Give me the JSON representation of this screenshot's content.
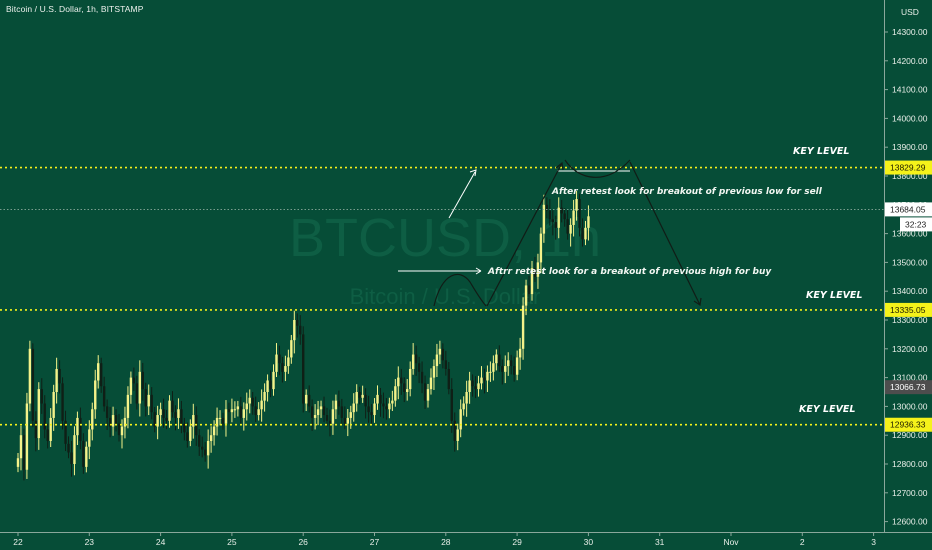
{
  "header": {
    "title": "Bitcoin / U.S. Dollar, 1h, BITSTAMP"
  },
  "watermark": {
    "symbol": "BTCUSD, 1h",
    "name": "Bitcoin / U.S. Dollar"
  },
  "colors": {
    "background": "#064d37",
    "up_candle": "#f4f28a",
    "down_candle": "#0f1f16",
    "key_level": "#f5f21a",
    "drawing": "#111c16",
    "white_line": "#ffffff"
  },
  "chart_data": {
    "type": "candlestick",
    "symbol": "BTCUSD",
    "timeframe": "1h",
    "exchange": "BITSTAMP",
    "y_axis": {
      "unit": "USD",
      "ylim": [
        12560,
        14440
      ],
      "tick_labels": [
        "14400.00",
        "14300.00",
        "14200.00",
        "14100.00",
        "14000.00",
        "13900.00",
        "13800.00",
        "13700.00",
        "13600.00",
        "13500.00",
        "13400.00",
        "13300.00",
        "13200.00",
        "13100.00",
        "13000.00",
        "12900.00",
        "12800.00",
        "12700.00",
        "12600.00"
      ],
      "tick_values": [
        14400,
        14300,
        14200,
        14100,
        14000,
        13900,
        13800,
        13700,
        13600,
        13500,
        13400,
        13300,
        13200,
        13100,
        13000,
        12900,
        12800,
        12700,
        12600
      ],
      "position": "right"
    },
    "x_axis": {
      "tick_labels": [
        "22",
        "23",
        "24",
        "25",
        "26",
        "27",
        "28",
        "29",
        "30",
        "31",
        "Nov",
        "2",
        "3"
      ],
      "tick_days": [
        0,
        1,
        2,
        3,
        4,
        5,
        6,
        7,
        8,
        9,
        10,
        11,
        12
      ]
    },
    "candles_close_path": {
      "start_day": 0,
      "step_days": 0.04167,
      "closes": [
        12820,
        12900,
        12780,
        13010,
        13200,
        12950,
        12890,
        13060,
        13010,
        12920,
        12880,
        12960,
        13050,
        13130,
        13080,
        12950,
        12870,
        12840,
        12800,
        12900,
        12960,
        12880,
        12790,
        12860,
        12920,
        12990,
        13090,
        13150,
        13070,
        13000,
        12960,
        12930,
        12970,
        12940,
        12900,
        12930,
        12960,
        13040,
        13100,
        13080,
        13010,
        13120,
        13060,
        13000,
        13040,
        12980,
        12930,
        12970,
        12990,
        12960,
        12950,
        13020,
        12980,
        12960,
        12990,
        12940,
        12910,
        12880,
        12930,
        12970,
        12900,
        12860,
        12850,
        12830,
        12880,
        12900,
        12930,
        12960,
        12960,
        12940,
        12990,
        12980,
        12990,
        12990,
        13000,
        12960,
        12990,
        13010,
        13030,
        13000,
        12970,
        12990,
        13020,
        13050,
        13090,
        13060,
        13120,
        13180,
        13150,
        13120,
        13140,
        13170,
        13230,
        13300,
        13280,
        13250,
        13010,
        13040,
        13000,
        12960,
        12970,
        12990,
        13000,
        12970,
        12950,
        12940,
        12990,
        13020,
        13000,
        12960,
        12940,
        12960,
        12980,
        13010,
        13050,
        13030,
        13040,
        13000,
        12980,
        12970,
        13010,
        13040,
        13010,
        13000,
        12990,
        13010,
        13020,
        13070,
        13100,
        13080,
        13050,
        13060,
        13130,
        13180,
        13150,
        13120,
        13080,
        13020,
        13060,
        13100,
        13140,
        13180,
        13200,
        13160,
        13130,
        13060,
        12950,
        12880,
        12920,
        12990,
        13010,
        13050,
        13090,
        13070,
        13060,
        13080,
        13100,
        13090,
        13120,
        13120,
        13150,
        13180,
        13140,
        13120,
        13140,
        13160,
        13140,
        13110,
        13170,
        13200,
        13350,
        13420,
        13390,
        13480,
        13450,
        13500,
        13600,
        13700,
        13680,
        13650,
        13640,
        13620,
        13690,
        13670,
        13650,
        13600,
        13630,
        13680,
        13720,
        13620,
        13580,
        13620,
        13660
      ]
    },
    "key_levels": [
      {
        "label": "KEY LEVEL",
        "price": 13829.29,
        "tag": "13829.29"
      },
      {
        "label": "KEY LEVEL",
        "price": 13335.05,
        "tag": "13335.05"
      },
      {
        "label": "KEY LEVEL",
        "price": 12936.33,
        "tag": "12936.33"
      }
    ],
    "current_price": {
      "price": 13684.05,
      "tag": "13684.05",
      "countdown": "32:23"
    },
    "other_price_tag": {
      "price": 13066.73,
      "tag": "13066.73"
    },
    "annotations": [
      "After retest look for breakout of previous low for sell",
      "Aftrr retest look for a breakout of previous high for buy"
    ]
  }
}
